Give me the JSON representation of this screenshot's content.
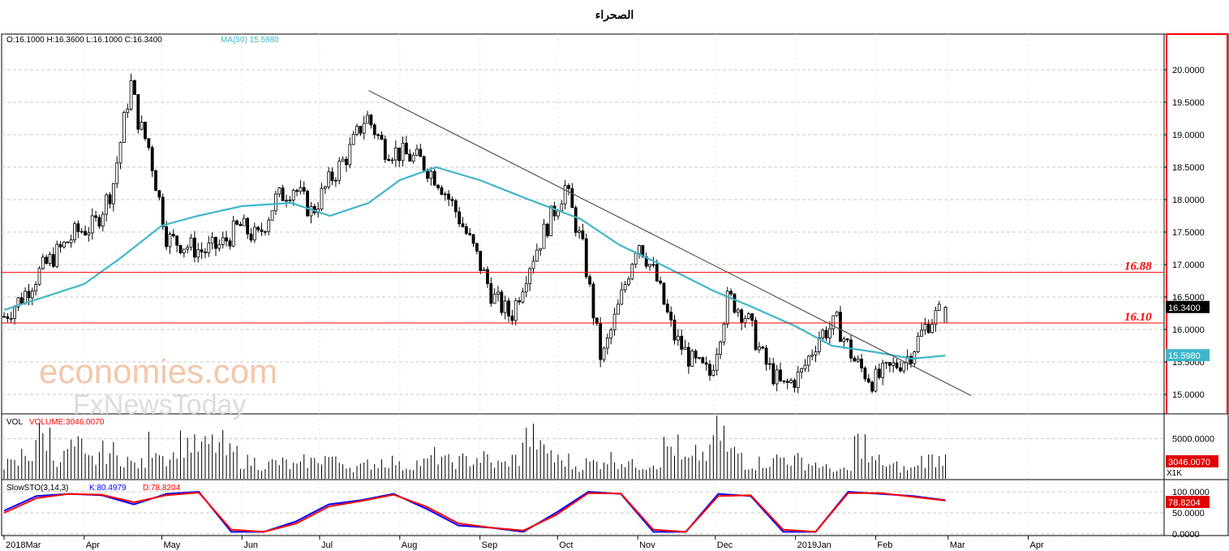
{
  "title": "الصحراء",
  "ohlc_label": "O:16.1000   H:16.3600   L:16.1000   C:16.3400",
  "ma_label": "MA(50)   15.5980",
  "vol_label": "VOL",
  "vol_value_label": "VOLUME:3046.0070",
  "sto_label": "SlowSTO(3,14,3)",
  "sto_k_label": "K:80.4979",
  "sto_d_label": "D:78.8204",
  "price_tag": "16.3400",
  "ma_tag": "15.5980",
  "vol_tag": "3046.0070",
  "sto_tag": "78.8204",
  "vol_axis_labels": [
    "5000.0000",
    "X1K"
  ],
  "sto_axis_labels": [
    "100.0000",
    "50.0000",
    "0.0000"
  ],
  "watermark_top": "economies.com",
  "watermark_bottom": "FxNewsToday",
  "colors": {
    "ma": "#3fb6c9",
    "resistance": "#ff0000",
    "trendline": "#555555",
    "k_line": "#0000ff",
    "d_line": "#ff0000",
    "frame_right": "#ff0000"
  },
  "chart_data": [
    {
      "type": "candlestick",
      "title": "الصحراء",
      "x_ticks": [
        "2018Mar",
        "Apr",
        "May",
        "Jun",
        "Jul",
        "Aug",
        "Sep",
        "Oct",
        "Nov",
        "Dec",
        "2019Jan",
        "Feb",
        "Mar",
        "Apr"
      ],
      "y_ticks": [
        15.0,
        15.5,
        16.0,
        16.5,
        17.0,
        17.5,
        18.0,
        18.5,
        19.0,
        19.5,
        20.0
      ],
      "ylim": [
        14.7,
        20.55
      ],
      "horizontal_lines": [
        {
          "value": 16.88,
          "label": "16.88"
        },
        {
          "value": 16.1,
          "label": "16.10"
        }
      ],
      "trendline": {
        "from": {
          "date": "2018-07-20",
          "value": 19.68
        },
        "to": {
          "date": "2019-03-10",
          "value": 14.98
        }
      },
      "close_series": [
        [
          "2018-03-01",
          16.2
        ],
        [
          "2018-03-08",
          16.5
        ],
        [
          "2018-03-15",
          16.9
        ],
        [
          "2018-03-22",
          17.2
        ],
        [
          "2018-03-29",
          17.5
        ],
        [
          "2018-04-05",
          17.6
        ],
        [
          "2018-04-12",
          18.2
        ],
        [
          "2018-04-19",
          19.8
        ],
        [
          "2018-04-22",
          19.2
        ],
        [
          "2018-04-26",
          18.8
        ],
        [
          "2018-05-03",
          17.4
        ],
        [
          "2018-05-10",
          17.3
        ],
        [
          "2018-05-17",
          17.2
        ],
        [
          "2018-05-24",
          17.3
        ],
        [
          "2018-05-31",
          17.6
        ],
        [
          "2018-06-07",
          17.4
        ],
        [
          "2018-06-14",
          18.0
        ],
        [
          "2018-06-21",
          18.2
        ],
        [
          "2018-06-28",
          17.8
        ],
        [
          "2018-07-05",
          18.3
        ],
        [
          "2018-07-12",
          18.7
        ],
        [
          "2018-07-19",
          19.3
        ],
        [
          "2018-07-26",
          18.8
        ],
        [
          "2018-08-02",
          18.7
        ],
        [
          "2018-08-09",
          18.6
        ],
        [
          "2018-08-16",
          18.3
        ],
        [
          "2018-08-23",
          17.8
        ],
        [
          "2018-08-30",
          17.2
        ],
        [
          "2018-09-06",
          16.5
        ],
        [
          "2018-09-13",
          16.2
        ],
        [
          "2018-09-20",
          17.0
        ],
        [
          "2018-09-27",
          17.6
        ],
        [
          "2018-10-04",
          18.2
        ],
        [
          "2018-10-11",
          17.2
        ],
        [
          "2018-10-18",
          15.5
        ],
        [
          "2018-10-25",
          16.4
        ],
        [
          "2018-11-01",
          17.4
        ],
        [
          "2018-11-08",
          16.8
        ],
        [
          "2018-11-15",
          15.9
        ],
        [
          "2018-11-22",
          15.5
        ],
        [
          "2018-11-29",
          15.3
        ],
        [
          "2018-12-06",
          16.5
        ],
        [
          "2018-12-13",
          16.2
        ],
        [
          "2018-12-20",
          15.5
        ],
        [
          "2018-12-27",
          15.1
        ],
        [
          "2019-01-03",
          15.3
        ],
        [
          "2019-01-10",
          15.9
        ],
        [
          "2019-01-17",
          16.1
        ],
        [
          "2019-01-24",
          15.5
        ],
        [
          "2019-01-31",
          15.2
        ],
        [
          "2019-02-07",
          15.4
        ],
        [
          "2019-02-14",
          15.6
        ],
        [
          "2019-02-21",
          16.1
        ],
        [
          "2019-02-28",
          16.34
        ]
      ],
      "ma50": [
        [
          "2018-03-01",
          16.3
        ],
        [
          "2018-04-01",
          16.7
        ],
        [
          "2018-04-15",
          17.1
        ],
        [
          "2018-05-01",
          17.6
        ],
        [
          "2018-05-15",
          17.75
        ],
        [
          "2018-06-01",
          17.9
        ],
        [
          "2018-06-20",
          17.95
        ],
        [
          "2018-07-05",
          17.75
        ],
        [
          "2018-07-20",
          17.95
        ],
        [
          "2018-08-01",
          18.3
        ],
        [
          "2018-08-15",
          18.5
        ],
        [
          "2018-09-01",
          18.3
        ],
        [
          "2018-09-20",
          18.0
        ],
        [
          "2018-10-10",
          17.7
        ],
        [
          "2018-10-25",
          17.3
        ],
        [
          "2018-11-10",
          17.0
        ],
        [
          "2018-11-30",
          16.6
        ],
        [
          "2018-12-15",
          16.35
        ],
        [
          "2019-01-01",
          16.05
        ],
        [
          "2019-01-15",
          15.75
        ],
        [
          "2019-02-01",
          15.65
        ],
        [
          "2019-02-15",
          15.55
        ],
        [
          "2019-02-28",
          15.598
        ]
      ],
      "last": {
        "open": 16.1,
        "high": 16.36,
        "low": 16.1,
        "close": 16.34
      }
    },
    {
      "type": "bar",
      "title": "VOL",
      "y_ticks": [
        5000
      ],
      "last_value": 3046.007,
      "approx_values": [
        2200,
        3600,
        6300,
        3200,
        4600,
        2800,
        4000,
        3100,
        2200,
        5200,
        3400,
        5400,
        4700,
        5100,
        3800,
        2600,
        2100,
        2400,
        1900,
        2600,
        3200,
        2500,
        1800,
        2300,
        2700,
        1900,
        2400,
        3400,
        2600,
        2800,
        3100,
        2200,
        2900,
        6100,
        4200,
        2800,
        1900,
        2400,
        3100,
        2600,
        2100,
        2400,
        4800,
        2700,
        3600,
        6800,
        3900,
        2200,
        2500,
        3200,
        2800,
        2300,
        1600,
        1200,
        5400,
        2700,
        1900,
        1500,
        2900,
        3046
      ]
    },
    {
      "type": "line",
      "title": "SlowSTO(3,14,3)",
      "y_ticks": [
        0,
        50,
        100
      ],
      "series": [
        {
          "name": "K",
          "values": [
            55,
            90,
            95,
            92,
            70,
            95,
            100,
            5,
            5,
            30,
            70,
            80,
            95,
            60,
            20,
            15,
            5,
            50,
            100,
            95,
            5,
            5,
            95,
            90,
            5,
            5,
            100,
            95,
            90,
            80
          ]
        },
        {
          "name": "D",
          "values": [
            50,
            85,
            95,
            93,
            75,
            92,
            98,
            10,
            5,
            25,
            65,
            78,
            93,
            65,
            25,
            15,
            8,
            45,
            97,
            96,
            10,
            5,
            90,
            92,
            10,
            5,
            97,
            97,
            88,
            79
          ]
        }
      ],
      "last": {
        "K": 80.4979,
        "D": 78.8204
      }
    }
  ]
}
